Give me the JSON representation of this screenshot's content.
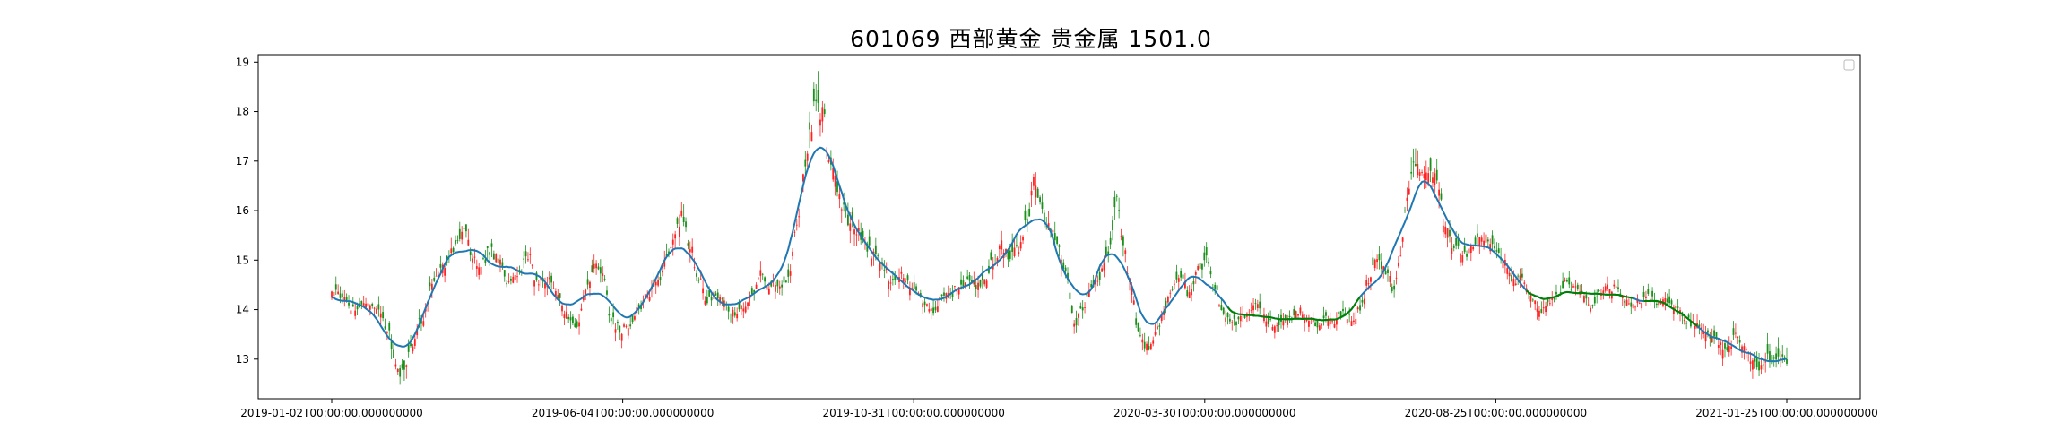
{
  "chart_data": {
    "type": "candlestick",
    "title": "601069 西部黄金 贵金属 1501.0",
    "xlabel": "",
    "ylabel": "",
    "x_tick_labels": [
      "2019-01-02T00:00:00.000000000",
      "2019-06-04T00:00:00.000000000",
      "2019-10-31T00:00:00.000000000",
      "2020-03-30T00:00:00.000000000",
      "2020-08-25T00:00:00.000000000",
      "2021-01-25T00:00:00.000000000"
    ],
    "y_ticks": [
      13,
      14,
      15,
      16,
      17,
      18,
      19
    ],
    "ylim": [
      12.2,
      19.15
    ],
    "legend_position": "top-right",
    "grid": false,
    "colors": {
      "up": "#ff2222",
      "down": "#1a8f1a",
      "ma": "#1f77b4",
      "ma_trend": "#008000"
    },
    "close_series": [
      [
        0,
        14.4
      ],
      [
        4,
        14.3
      ],
      [
        10,
        14.0
      ],
      [
        16,
        14.15
      ],
      [
        22,
        14.0
      ],
      [
        26,
        13.6
      ],
      [
        30,
        12.9
      ],
      [
        33,
        12.7
      ],
      [
        37,
        13.2
      ],
      [
        42,
        13.8
      ],
      [
        48,
        14.6
      ],
      [
        53,
        14.9
      ],
      [
        58,
        15.3
      ],
      [
        62,
        15.6
      ],
      [
        66,
        15.0
      ],
      [
        70,
        14.9
      ],
      [
        74,
        15.2
      ],
      [
        78,
        15.0
      ],
      [
        83,
        14.5
      ],
      [
        88,
        14.8
      ],
      [
        92,
        15.1
      ],
      [
        96,
        14.6
      ],
      [
        101,
        14.6
      ],
      [
        105,
        14.4
      ],
      [
        110,
        13.9
      ],
      [
        115,
        13.6
      ],
      [
        119,
        14.4
      ],
      [
        123,
        14.9
      ],
      [
        127,
        14.7
      ],
      [
        131,
        13.8
      ],
      [
        135,
        13.6
      ],
      [
        140,
        13.7
      ],
      [
        144,
        14.0
      ],
      [
        148,
        14.3
      ],
      [
        153,
        14.6
      ],
      [
        157,
        15.0
      ],
      [
        161,
        15.5
      ],
      [
        164,
        15.9
      ],
      [
        168,
        15.3
      ],
      [
        172,
        14.6
      ],
      [
        176,
        14.2
      ],
      [
        180,
        14.3
      ],
      [
        184,
        14.2
      ],
      [
        188,
        13.9
      ],
      [
        193,
        14.1
      ],
      [
        197,
        14.3
      ],
      [
        201,
        14.7
      ],
      [
        206,
        14.5
      ],
      [
        210,
        14.5
      ],
      [
        214,
        14.6
      ],
      [
        218,
        15.6
      ],
      [
        221,
        16.6
      ],
      [
        224,
        17.6
      ],
      [
        227,
        18.2
      ],
      [
        230,
        18.0
      ],
      [
        233,
        17.2
      ],
      [
        236,
        16.6
      ],
      [
        239,
        16.1
      ],
      [
        242,
        15.8
      ],
      [
        246,
        15.6
      ],
      [
        250,
        15.3
      ],
      [
        254,
        15.1
      ],
      [
        258,
        14.9
      ],
      [
        262,
        14.6
      ],
      [
        266,
        14.7
      ],
      [
        270,
        14.5
      ],
      [
        274,
        14.3
      ],
      [
        278,
        14.1
      ],
      [
        282,
        14.0
      ],
      [
        286,
        14.2
      ],
      [
        290,
        14.3
      ],
      [
        294,
        14.5
      ],
      [
        298,
        14.6
      ],
      [
        302,
        14.5
      ],
      [
        306,
        14.6
      ],
      [
        310,
        15.0
      ],
      [
        314,
        15.3
      ],
      [
        318,
        15.1
      ],
      [
        322,
        15.2
      ],
      [
        326,
        15.8
      ],
      [
        329,
        16.6
      ],
      [
        332,
        16.1
      ],
      [
        336,
        15.7
      ],
      [
        340,
        15.4
      ],
      [
        344,
        14.8
      ],
      [
        348,
        13.7
      ],
      [
        352,
        14.0
      ],
      [
        356,
        14.4
      ],
      [
        360,
        14.7
      ],
      [
        364,
        15.2
      ],
      [
        368,
        16.2
      ],
      [
        371,
        15.4
      ],
      [
        374,
        14.6
      ],
      [
        378,
        13.6
      ],
      [
        382,
        13.2
      ],
      [
        386,
        13.5
      ],
      [
        390,
        14.0
      ],
      [
        394,
        14.4
      ],
      [
        398,
        14.7
      ],
      [
        402,
        14.3
      ],
      [
        406,
        14.8
      ],
      [
        410,
        15.0
      ],
      [
        414,
        14.4
      ],
      [
        418,
        13.9
      ],
      [
        422,
        13.7
      ],
      [
        426,
        13.8
      ],
      [
        430,
        14.0
      ],
      [
        434,
        14.1
      ],
      [
        438,
        13.8
      ],
      [
        442,
        13.7
      ],
      [
        446,
        13.8
      ],
      [
        450,
        13.9
      ],
      [
        454,
        14.0
      ],
      [
        458,
        13.8
      ],
      [
        462,
        13.7
      ],
      [
        466,
        13.8
      ],
      [
        470,
        13.8
      ],
      [
        474,
        13.9
      ],
      [
        478,
        13.8
      ],
      [
        482,
        14.0
      ],
      [
        486,
        14.6
      ],
      [
        490,
        15.0
      ],
      [
        494,
        14.8
      ],
      [
        498,
        14.4
      ],
      [
        501,
        15.2
      ],
      [
        504,
        16.4
      ],
      [
        507,
        17.0
      ],
      [
        510,
        16.7
      ],
      [
        513,
        16.9
      ],
      [
        516,
        16.8
      ],
      [
        519,
        16.5
      ],
      [
        522,
        15.6
      ],
      [
        526,
        15.3
      ],
      [
        530,
        15.1
      ],
      [
        534,
        15.2
      ],
      [
        538,
        15.5
      ],
      [
        542,
        15.4
      ],
      [
        546,
        15.1
      ],
      [
        550,
        14.9
      ],
      [
        554,
        14.6
      ],
      [
        558,
        14.6
      ],
      [
        562,
        14.3
      ],
      [
        566,
        14.0
      ],
      [
        570,
        14.1
      ],
      [
        574,
        14.3
      ],
      [
        578,
        14.5
      ],
      [
        582,
        14.4
      ],
      [
        586,
        14.3
      ],
      [
        590,
        14.1
      ],
      [
        594,
        14.3
      ],
      [
        598,
        14.5
      ],
      [
        602,
        14.4
      ],
      [
        606,
        14.2
      ],
      [
        610,
        14.1
      ],
      [
        614,
        14.2
      ],
      [
        618,
        14.3
      ],
      [
        622,
        14.1
      ],
      [
        626,
        14.2
      ],
      [
        630,
        14.0
      ],
      [
        634,
        13.8
      ],
      [
        638,
        13.7
      ],
      [
        642,
        13.6
      ],
      [
        646,
        13.5
      ],
      [
        650,
        13.3
      ],
      [
        654,
        13.2
      ],
      [
        658,
        13.5
      ],
      [
        662,
        13.2
      ],
      [
        666,
        12.9
      ],
      [
        670,
        12.9
      ],
      [
        674,
        13.0
      ],
      [
        678,
        13.1
      ],
      [
        682,
        12.85
      ]
    ]
  }
}
